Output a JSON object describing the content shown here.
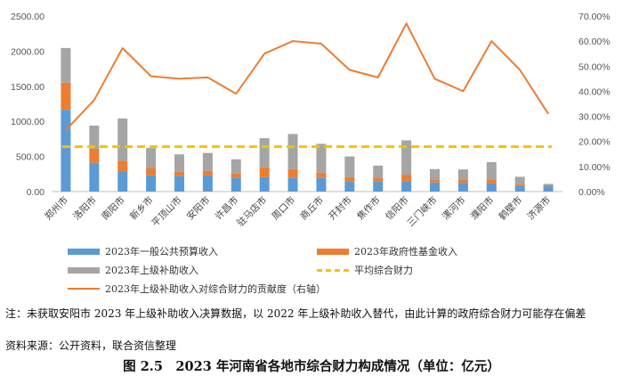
{
  "chart_data": {
    "type": "bar",
    "categories": [
      "郑州市",
      "洛阳市",
      "南阳市",
      "新乡市",
      "平顶山市",
      "安阳市",
      "许昌市",
      "驻马店市",
      "周口市",
      "商丘市",
      "开封市",
      "焦作市",
      "信阳市",
      "三门峡市",
      "漯河市",
      "濮阳市",
      "鹤壁市",
      "济源市"
    ],
    "series": [
      {
        "name": "2023年一般公共预算收入",
        "type": "bar",
        "stack": "total",
        "color": "#5b9bd5",
        "values": [
          1165,
          410,
          285,
          230,
          225,
          230,
          195,
          205,
          200,
          195,
          150,
          145,
          150,
          130,
          125,
          115,
          85,
          75
        ]
      },
      {
        "name": "2023年政府性基金收入",
        "type": "bar",
        "stack": "total",
        "color": "#ed7d31",
        "values": [
          385,
          200,
          155,
          100,
          55,
          65,
          60,
          140,
          120,
          75,
          55,
          50,
          90,
          40,
          40,
          50,
          25,
          15
        ]
      },
      {
        "name": "2023年上级补助收入",
        "type": "bar",
        "stack": "total",
        "color": "#a5a5a5",
        "values": [
          495,
          330,
          600,
          290,
          250,
          255,
          205,
          415,
          500,
          410,
          295,
          175,
          490,
          150,
          150,
          255,
          100,
          20
        ]
      },
      {
        "name": "平均综合财力",
        "type": "hline",
        "color": "#f3c300",
        "value": 640
      },
      {
        "name": "2023年上级补助收入对综合财力的贡献度（右轴）",
        "type": "line",
        "axis": "right",
        "color": "#ed7d31",
        "values": [
          24.5,
          36.5,
          57.2,
          46.0,
          45.0,
          45.5,
          39.0,
          55.0,
          60.0,
          59.0,
          48.5,
          45.5,
          67.0,
          45.0,
          40.0,
          60.0,
          48.5,
          31.0
        ]
      }
    ],
    "ylim": [
      0,
      2500
    ],
    "y_ticks": [
      "0.00",
      "500.00",
      "1000.00",
      "1500.00",
      "2000.00",
      "2500.00"
    ],
    "y2lim": [
      0,
      70
    ],
    "y2_ticks": [
      "0.00%",
      "10.00%",
      "20.00%",
      "30.00%",
      "40.00%",
      "50.00%",
      "60.00%",
      "70.00%"
    ],
    "grid": false,
    "legend_position": "bottom"
  },
  "note": "注：未获取安阳市 2023 年上级补助收入决算数据，以 2022 年上级补助收入替代，由此计算的政府综合财力可能存在偏差",
  "source": "资料来源：公开资料，联合资信整理",
  "caption": "图 2.5　2023 年河南省各地市综合财力构成情况（单位：亿元）"
}
